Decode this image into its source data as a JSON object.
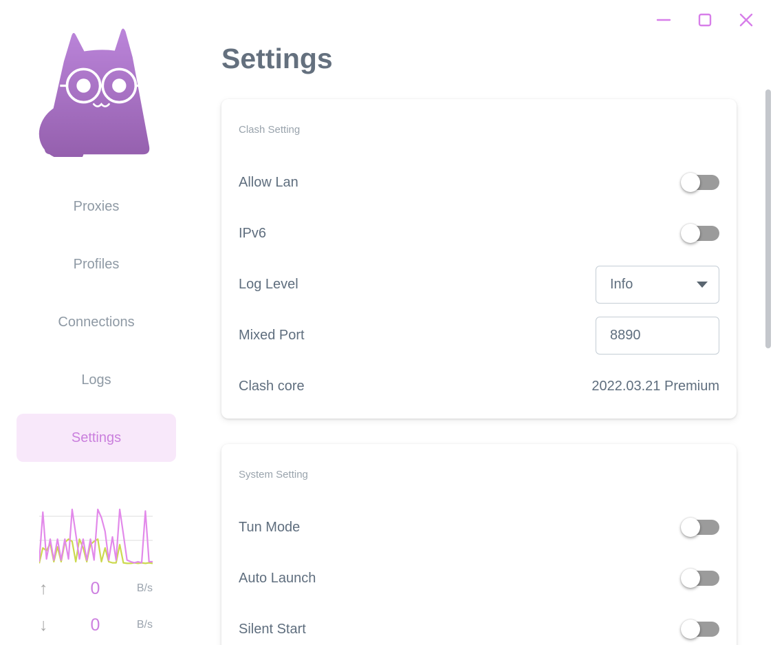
{
  "window": {
    "controls": {
      "minimize": "minimize",
      "maximize": "maximize",
      "close": "close"
    },
    "accent_color": "#d77ee9"
  },
  "page_title": "Settings",
  "sidebar": {
    "logo": "purple-cat-with-glasses",
    "items": [
      {
        "label": "Proxies",
        "active": false
      },
      {
        "label": "Profiles",
        "active": false
      },
      {
        "label": "Connections",
        "active": false
      },
      {
        "label": "Logs",
        "active": false
      },
      {
        "label": "Settings",
        "active": true
      }
    ],
    "active_bg": "#f8e8fa",
    "active_text": "#ca7fdd",
    "traffic": {
      "up": {
        "arrow": "↑",
        "value": "0",
        "unit": "B/s"
      },
      "down": {
        "arrow": "↓",
        "value": "0",
        "unit": "B/s"
      }
    }
  },
  "cards": [
    {
      "title": "Clash Setting",
      "rows": [
        {
          "label": "Allow Lan",
          "control": "switch",
          "state": "off"
        },
        {
          "label": "IPv6",
          "control": "switch",
          "state": "off"
        },
        {
          "label": "Log Level",
          "control": "select",
          "value": "Info"
        },
        {
          "label": "Mixed Port",
          "control": "input",
          "value": "8890"
        },
        {
          "label": "Clash core",
          "control": "text",
          "value": "2022.03.21 Premium"
        }
      ]
    },
    {
      "title": "System Setting",
      "rows": [
        {
          "label": "Tun Mode",
          "control": "switch",
          "state": "off"
        },
        {
          "label": "Auto Launch",
          "control": "switch",
          "state": "off"
        },
        {
          "label": "Silent Start",
          "control": "switch",
          "state": "off"
        }
      ]
    }
  ],
  "chart_data": {
    "type": "line",
    "title": "sidebar traffic sparkline",
    "xlabel": "",
    "ylabel": "",
    "ylim": [
      0,
      100
    ],
    "grid": true,
    "gridlines_y_pct": [
      86,
      44
    ],
    "legend": "none",
    "series": [
      {
        "name": "down",
        "color": "#ccd94e",
        "values": [
          2,
          30,
          25,
          38,
          5,
          32,
          5,
          40,
          46,
          42,
          5,
          46,
          30,
          5,
          36,
          42,
          46,
          5,
          30,
          5,
          3,
          3,
          36,
          3,
          2,
          2,
          3,
          2,
          3,
          2,
          3,
          2
        ]
      },
      {
        "name": "up",
        "color": "#e289ea",
        "values": [
          5,
          95,
          10,
          46,
          8,
          46,
          8,
          46,
          10,
          100,
          55,
          10,
          46,
          8,
          46,
          8,
          100,
          85,
          60,
          8,
          50,
          8,
          100,
          55,
          8,
          5,
          3,
          5,
          3,
          97,
          5,
          5
        ]
      }
    ]
  },
  "colors": {
    "title_text": "#64707e",
    "label_text": "#5f6e7e",
    "muted_text": "#99a3ac",
    "nav_text": "#8e99a4",
    "accent_purple": "#cd80e0",
    "switch_track_off": "#9b9b9b"
  }
}
